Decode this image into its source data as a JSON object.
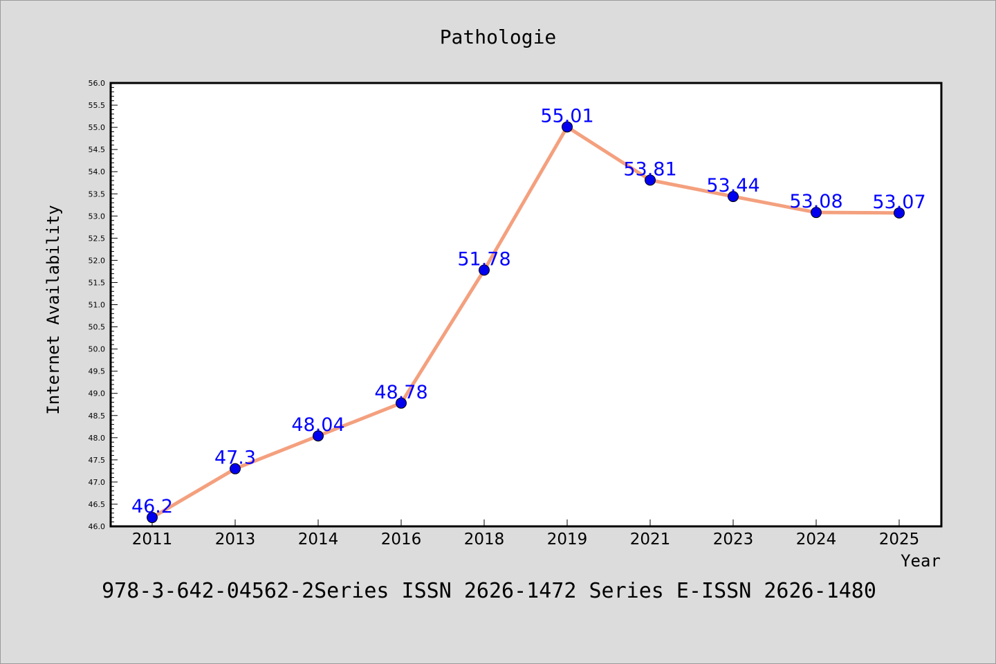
{
  "chart_data": {
    "type": "line",
    "title": "Pathologie",
    "xlabel": "Year",
    "ylabel": "Internet Availability",
    "categories": [
      "2011",
      "2013",
      "2014",
      "2016",
      "2018",
      "2019",
      "2021",
      "2023",
      "2024",
      "2025"
    ],
    "values": [
      46.2,
      47.3,
      48.04,
      48.78,
      51.78,
      55.01,
      53.81,
      53.44,
      53.08,
      53.07
    ],
    "data_labels": [
      "46.2",
      "47.3",
      "48.04",
      "48.78",
      "51.78",
      "55.01",
      "53.81",
      "53.44",
      "53.08",
      "53.07"
    ],
    "ylim": [
      46.0,
      56.0
    ],
    "y_major_step": 0.5,
    "y_ticks": [
      "46.0",
      "46.5",
      "47.0",
      "47.5",
      "48.0",
      "48.5",
      "49.0",
      "49.5",
      "50.0",
      "50.5",
      "51.0",
      "51.5",
      "52.0",
      "52.5",
      "53.0",
      "53.5",
      "54.0",
      "54.5",
      "55.0",
      "55.5",
      "56.0"
    ],
    "grid": false,
    "footer_text": "978-3-642-04562-2Series ISSN 2626-1472 Series E-ISSN 2626-1480",
    "colors": {
      "background": "#dcdcdc",
      "plot_background": "#ffffff",
      "line": "#f4a07e",
      "marker": "#0000ee",
      "label": "#0000ff"
    }
  }
}
